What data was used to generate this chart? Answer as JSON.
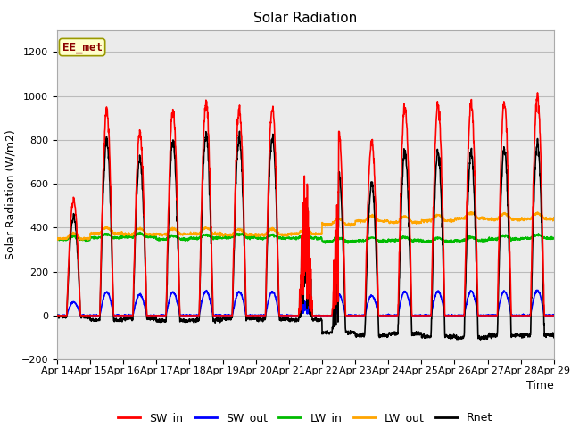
{
  "title": "Solar Radiation",
  "ylabel": "Solar Radiation (W/m2)",
  "xlabel": "Time",
  "xlim_days": [
    0,
    15
  ],
  "ylim": [
    -200,
    1300
  ],
  "yticks": [
    -200,
    0,
    200,
    400,
    600,
    800,
    1000,
    1200
  ],
  "x_tick_labels": [
    "Apr 14",
    "Apr 15",
    "Apr 16",
    "Apr 17",
    "Apr 18",
    "Apr 19",
    "Apr 20",
    "Apr 21",
    "Apr 22",
    "Apr 23",
    "Apr 24",
    "Apr 25",
    "Apr 26",
    "Apr 27",
    "Apr 28",
    "Apr 29"
  ],
  "series_colors": {
    "SW_in": "#ff0000",
    "SW_out": "#0000ff",
    "LW_in": "#00bb00",
    "LW_out": "#ffa500",
    "Rnet": "#000000"
  },
  "series_linewidths": {
    "SW_in": 1.2,
    "SW_out": 1.2,
    "LW_in": 1.2,
    "LW_out": 1.2,
    "Rnet": 1.2
  },
  "annotation_text": "EE_met",
  "annotation_color": "#8b0000",
  "annotation_bg": "#ffffcc",
  "annotation_edge": "#999900",
  "grid_color": "#bbbbbb",
  "plot_bg": "#ebebeb",
  "fig_bg": "#ffffff",
  "n_points_per_day": 144,
  "n_days": 15,
  "title_fontsize": 11,
  "axis_fontsize": 9,
  "tick_fontsize": 8,
  "legend_fontsize": 9
}
